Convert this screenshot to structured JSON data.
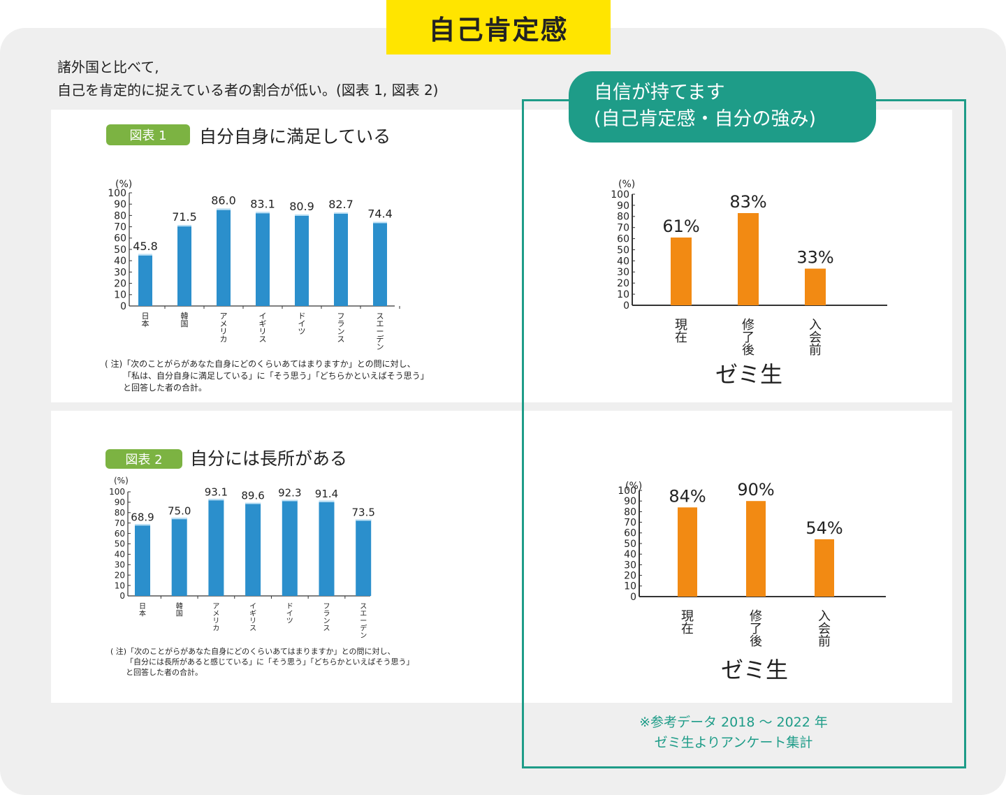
{
  "page_title": "自己肯定感",
  "intro": {
    "line1": "諸外国と比べて,",
    "line2": "自己を肯定的に捉えている者の割合が低い。(図表 1, 図表 2)"
  },
  "green_section": {
    "heading_line1": "自信が持てます",
    "heading_line2": "(自己肯定感・自分の強み)",
    "reference_line1": "※参考データ 2018 〜 2022 年",
    "reference_line2": "ゼミ生よりアンケート集計"
  },
  "colors": {
    "blue_bar": "#2b8fcc",
    "orange_bar": "#f28a13",
    "green": "#1e9c88",
    "yellow": "#ffe500",
    "badge": "#7cb342"
  },
  "chart_data": [
    {
      "id": "fig1",
      "type": "bar",
      "badge": "図表 1",
      "title": "自分自身に満足している",
      "ylabel": "(%)",
      "ylim": [
        0,
        100
      ],
      "yticks": [
        "100",
        "90",
        "80",
        "70",
        "60",
        "50",
        "40",
        "30",
        "20",
        "10",
        "0"
      ],
      "categories": [
        "日本",
        "韓国",
        "アメリカ",
        "イギリス",
        "ドイツ",
        "フランス",
        "スエーデン"
      ],
      "values": [
        45.8,
        71.5,
        86.0,
        83.1,
        80.9,
        82.7,
        74.4
      ],
      "value_labels": [
        "45.8",
        "71.5",
        "86.0",
        "83.1",
        "80.9",
        "82.7",
        "74.4"
      ],
      "note_line1": "( 注)「次のことがらがあなた自身にどのくらいあてはまりますか」との問に対し、",
      "note_line2": "「私は、自分自身に満足している」に「そう思う」「どちらかといえばそう思う」",
      "note_line3": "と回答した者の合計。"
    },
    {
      "id": "fig2",
      "type": "bar",
      "badge": "図表 2",
      "title": "自分には長所がある",
      "ylabel": "(%)",
      "ylim": [
        0,
        100
      ],
      "yticks": [
        "100",
        "90",
        "80",
        "70",
        "60",
        "50",
        "40",
        "30",
        "20",
        "10",
        "0"
      ],
      "categories": [
        "日本",
        "韓国",
        "アメリカ",
        "イギリス",
        "ドイツ",
        "フランス",
        "スエーデン"
      ],
      "values": [
        68.9,
        75.0,
        93.1,
        89.6,
        92.3,
        91.4,
        73.5
      ],
      "value_labels": [
        "68.9",
        "75.0",
        "93.1",
        "89.6",
        "92.3",
        "91.4",
        "73.5"
      ],
      "note_line1": "( 注)「次のことがらがあなた自身にどのくらいあてはまりますか」との問に対し、",
      "note_line2": "「自分には長所があると感じている」に「そう思う」「どちらかといえばそう思う」",
      "note_line3": "と回答した者の合計。"
    },
    {
      "id": "seminar1",
      "type": "bar",
      "ylabel": "(%)",
      "ylim": [
        0,
        100
      ],
      "yticks": [
        "100",
        "90",
        "80",
        "70",
        "60",
        "50",
        "40",
        "30",
        "20",
        "10",
        "0"
      ],
      "categories": [
        "現在",
        "修了後",
        "入会前"
      ],
      "values": [
        61,
        83,
        33
      ],
      "value_labels": [
        "61%",
        "83%",
        "33%"
      ],
      "xlabel": "ゼミ生"
    },
    {
      "id": "seminar2",
      "type": "bar",
      "ylabel": "(%)",
      "ylim": [
        0,
        100
      ],
      "yticks": [
        "100",
        "90",
        "80",
        "70",
        "60",
        "50",
        "40",
        "30",
        "20",
        "10",
        "0"
      ],
      "categories": [
        "現在",
        "修了後",
        "入会前"
      ],
      "values": [
        84,
        90,
        54
      ],
      "value_labels": [
        "84%",
        "90%",
        "54%"
      ],
      "xlabel": "ゼミ生"
    }
  ]
}
